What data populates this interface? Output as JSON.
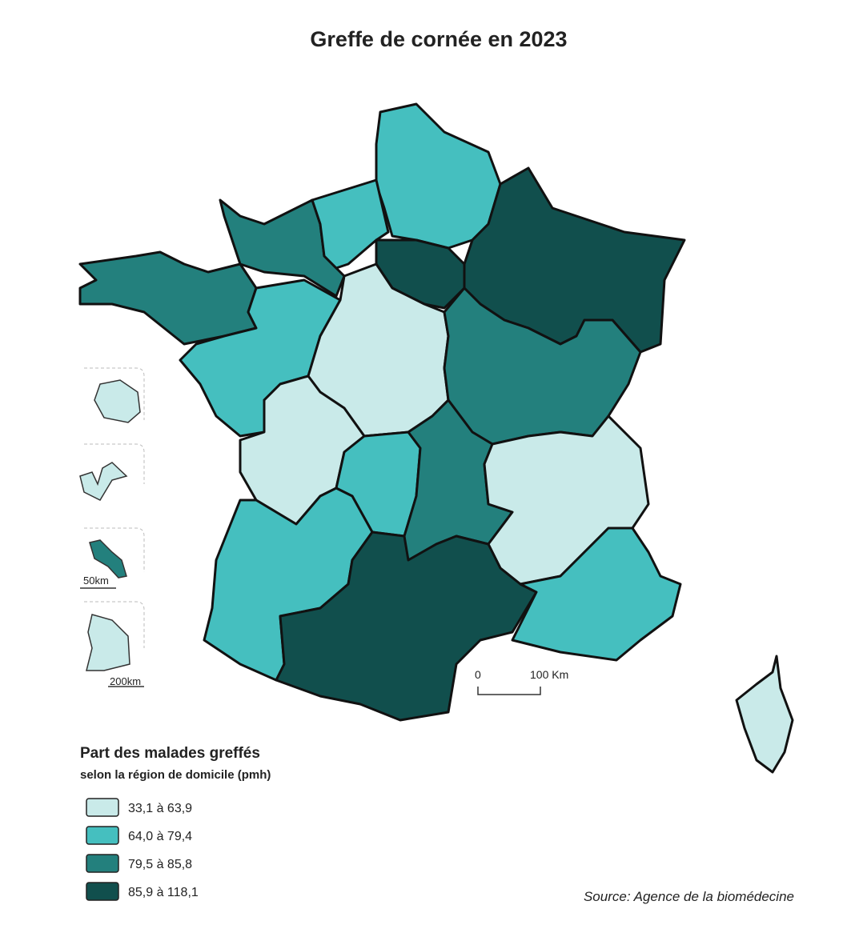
{
  "title": "Greffe de cornée en 2023",
  "legend": {
    "title": "Part des malades greffés",
    "subtitle": "selon la région de domicile (pmh)",
    "classes": [
      {
        "label": "33,1 à 63,9",
        "color": "#c9eae9"
      },
      {
        "label": "64,0 à 79,4",
        "color": "#45bfbf"
      },
      {
        "label": "79,5 à 85,8",
        "color": "#23807d"
      },
      {
        "label": "85,9 à 118,1",
        "color": "#114f4d"
      }
    ]
  },
  "scale": {
    "zero": "0",
    "main": "100 Km",
    "martinique": "50km",
    "guyane": "200km"
  },
  "source": "Source: Agence de la biomédecine"
}
